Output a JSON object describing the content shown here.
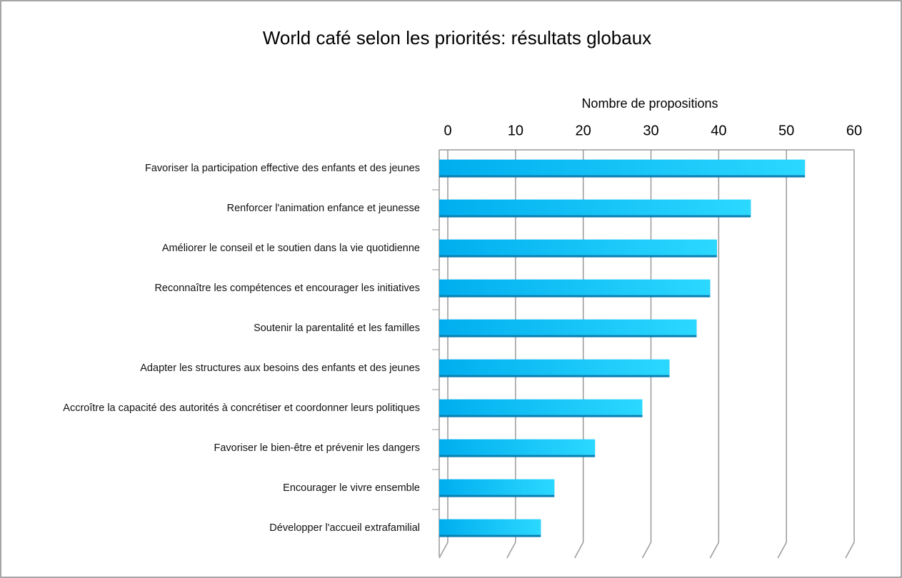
{
  "chart_data": {
    "type": "bar",
    "orientation": "horizontal",
    "title": "World café selon les priorités: résultats globaux",
    "x_label": "Nombre de propositions",
    "categories": [
      "Favoriser la participation effective des enfants et des jeunes",
      "Renforcer l'animation enfance et jeunesse",
      "Améliorer le conseil et le soutien dans la vie quotidienne",
      "Reconnaître les compétences et encourager les initiatives",
      "Soutenir la parentalité et les familles",
      "Adapter les structures aux besoins des enfants et des jeunes",
      "Accroître la capacité des autorités à concrétiser et coordonner leurs politiques",
      "Favoriser le bien-être et prévenir les dangers",
      "Encourager le vivre ensemble",
      "Développer l'accueil extrafamilial"
    ],
    "values": [
      54,
      46,
      41,
      40,
      38,
      34,
      30,
      23,
      17,
      15
    ],
    "color": "#1ec8f5",
    "xlim": [
      0,
      60
    ],
    "xticks": [
      0,
      10,
      20,
      30,
      40,
      50,
      60
    ],
    "grid": true
  }
}
